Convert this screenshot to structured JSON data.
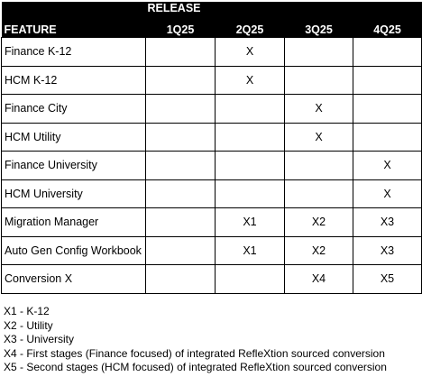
{
  "table": {
    "release_label": "RELEASE",
    "feature_header": "FEATURE",
    "quarters": [
      "1Q25",
      "2Q25",
      "3Q25",
      "4Q25"
    ],
    "rows": [
      {
        "feature": "Finance K-12",
        "cells": [
          "",
          "X",
          "",
          ""
        ]
      },
      {
        "feature": "HCM K-12",
        "cells": [
          "",
          "X",
          "",
          ""
        ]
      },
      {
        "feature": "Finance City",
        "cells": [
          "",
          "",
          "X",
          ""
        ]
      },
      {
        "feature": "HCM Utility",
        "cells": [
          "",
          "",
          "X",
          ""
        ]
      },
      {
        "feature": "Finance University",
        "cells": [
          "",
          "",
          "",
          "X"
        ]
      },
      {
        "feature": "HCM University",
        "cells": [
          "",
          "",
          "",
          "X"
        ]
      },
      {
        "feature": "Migration Manager",
        "cells": [
          "",
          "X1",
          "X2",
          "X3"
        ]
      },
      {
        "feature": "Auto Gen Config Workbook",
        "cells": [
          "",
          "X1",
          "X2",
          "X3"
        ]
      },
      {
        "feature": "Conversion X",
        "cells": [
          "",
          "",
          "X4",
          "X5"
        ]
      }
    ]
  },
  "notes": [
    "X1 - K-12",
    "X2 - Utility",
    "X3 - University",
    "X4 - First stages (Finance focused) of integrated RefleXtion sourced conversion",
    "X5 - Second stages (HCM focused) of integrated RefleXtion sourced conversion"
  ]
}
